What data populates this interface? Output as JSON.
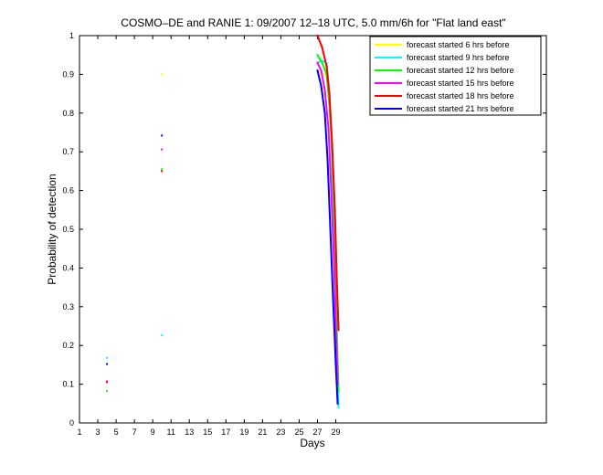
{
  "chart_data": {
    "type": "line",
    "title": "COSMO–DE and RANIE 1: 09/2007 12–18 UTC, 5.0 mm/6h for \"Flat land east\"",
    "xlabel": "Days",
    "ylabel": "Probability of detection",
    "xlim": [
      1,
      52
    ],
    "ylim": [
      0,
      1
    ],
    "x_ticks": [
      "1",
      "3",
      "5",
      "7",
      "9",
      "11",
      "13",
      "15",
      "17",
      "19",
      "21",
      "23",
      "25",
      "27",
      "29"
    ],
    "x_tick_values": [
      1,
      3,
      5,
      7,
      9,
      11,
      13,
      15,
      17,
      19,
      21,
      23,
      25,
      27,
      29
    ],
    "y_ticks": [
      "0",
      "0.1",
      "0.2",
      "0.3",
      "0.4",
      "0.5",
      "0.6",
      "0.7",
      "0.8",
      "0.9",
      "1"
    ],
    "y_tick_values": [
      0,
      0.1,
      0.2,
      0.3,
      0.4,
      0.5,
      0.6,
      0.7,
      0.8,
      0.9,
      1
    ],
    "grid": false,
    "legend_position": "top-right",
    "series": [
      {
        "name": "forecast started 6 hrs before",
        "color": "#ffff00",
        "points": [
          [
            10,
            0.9
          ],
          [
            27.5,
            0.9
          ],
          [
            28,
            0.9
          ],
          [
            28.2,
            0.85
          ],
          [
            28.5,
            0.75
          ],
          [
            28.8,
            0.55
          ],
          [
            29,
            0.35
          ],
          [
            29.2,
            0.15
          ],
          [
            29.3,
            0.06
          ]
        ]
      },
      {
        "name": "forecast started 9 hrs before",
        "color": "#00ffff",
        "points": [
          [
            4,
            0.168
          ],
          [
            10,
            0.226
          ],
          [
            27,
            0.93
          ],
          [
            27.5,
            0.935
          ],
          [
            28,
            0.93
          ],
          [
            28.2,
            0.88
          ],
          [
            28.5,
            0.75
          ],
          [
            28.8,
            0.5
          ],
          [
            29,
            0.3
          ],
          [
            29.2,
            0.12
          ],
          [
            29.3,
            0.04
          ]
        ]
      },
      {
        "name": "forecast started 12 hrs before",
        "color": "#00ff00",
        "points": [
          [
            4,
            0.082
          ],
          [
            10,
            0.655
          ],
          [
            27,
            0.95
          ],
          [
            27.5,
            0.93
          ],
          [
            28,
            0.9
          ],
          [
            28.3,
            0.82
          ],
          [
            28.6,
            0.7
          ],
          [
            28.9,
            0.5
          ],
          [
            29.1,
            0.25
          ],
          [
            29.3,
            0.08
          ]
        ]
      },
      {
        "name": "forecast started 15 hrs before",
        "color": "#ff00ff",
        "points": [
          [
            4,
            0.105
          ],
          [
            10,
            0.706
          ],
          [
            27,
            0.93
          ],
          [
            27.4,
            0.91
          ],
          [
            27.8,
            0.86
          ],
          [
            28.2,
            0.76
          ],
          [
            28.5,
            0.6
          ],
          [
            28.8,
            0.42
          ],
          [
            29,
            0.25
          ],
          [
            29.2,
            0.1
          ]
        ]
      },
      {
        "name": "forecast started 18 hrs before",
        "color": "#ff0000",
        "points": [
          [
            4,
            0.107
          ],
          [
            10,
            0.65
          ],
          [
            27,
            1.0
          ],
          [
            27.5,
            0.97
          ],
          [
            28,
            0.92
          ],
          [
            28.3,
            0.85
          ],
          [
            28.6,
            0.72
          ],
          [
            28.9,
            0.55
          ],
          [
            29.1,
            0.38
          ],
          [
            29.3,
            0.24
          ]
        ]
      },
      {
        "name": "forecast started 21 hrs before",
        "color": "#0000ff",
        "points": [
          [
            4,
            0.152
          ],
          [
            10,
            0.742
          ],
          [
            27,
            0.91
          ],
          [
            27.4,
            0.87
          ],
          [
            27.8,
            0.8
          ],
          [
            28.1,
            0.68
          ],
          [
            28.4,
            0.5
          ],
          [
            28.7,
            0.32
          ],
          [
            29,
            0.15
          ],
          [
            29.2,
            0.05
          ]
        ]
      }
    ]
  }
}
